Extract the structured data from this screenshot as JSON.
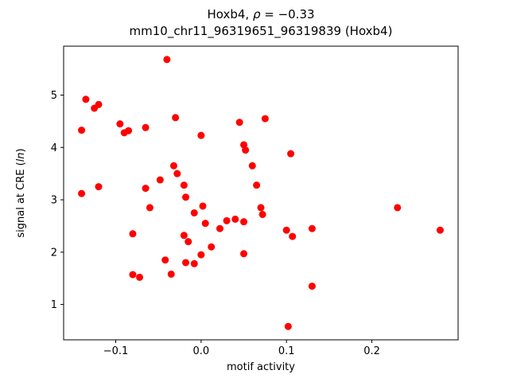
{
  "chart_data": {
    "type": "scatter",
    "title_line1_prefix": "Hoxb4, ",
    "title_line1_rho": "ρ",
    "title_line1_suffix": " = −0.33",
    "title_line2": "mm10_chr11_96319651_96319839 (Hoxb4)",
    "xlabel": "motif activity",
    "ylabel_prefix": "signal at CRE (",
    "ylabel_italic": "ln",
    "ylabel_suffix": ")",
    "xlim": [
      -0.161,
      0.301
    ],
    "ylim": [
      0.325,
      5.935
    ],
    "xtick_values": [
      -0.1,
      0.0,
      0.1,
      0.2
    ],
    "xtick_labels": [
      "−0.1",
      "0.0",
      "0.1",
      "0.2"
    ],
    "ytick_values": [
      1,
      2,
      3,
      4,
      5
    ],
    "ytick_labels": [
      "1",
      "2",
      "3",
      "4",
      "5"
    ],
    "marker_color": "#ff0000",
    "axis_color": "#000000",
    "legend": "none",
    "grid": false,
    "points": [
      [
        -0.14,
        3.12
      ],
      [
        -0.135,
        4.92
      ],
      [
        -0.14,
        4.33
      ],
      [
        -0.125,
        4.75
      ],
      [
        -0.12,
        4.82
      ],
      [
        -0.12,
        3.25
      ],
      [
        -0.095,
        4.45
      ],
      [
        -0.09,
        4.28
      ],
      [
        -0.085,
        4.32
      ],
      [
        -0.08,
        2.35
      ],
      [
        -0.08,
        1.57
      ],
      [
        -0.072,
        1.52
      ],
      [
        -0.065,
        4.38
      ],
      [
        -0.065,
        3.22
      ],
      [
        -0.06,
        2.85
      ],
      [
        -0.048,
        3.38
      ],
      [
        -0.04,
        5.68
      ],
      [
        -0.042,
        1.85
      ],
      [
        -0.035,
        1.58
      ],
      [
        -0.03,
        4.57
      ],
      [
        -0.032,
        3.65
      ],
      [
        -0.028,
        3.5
      ],
      [
        -0.02,
        3.28
      ],
      [
        -0.018,
        3.05
      ],
      [
        -0.02,
        2.32
      ],
      [
        -0.015,
        2.2
      ],
      [
        -0.018,
        1.8
      ],
      [
        -0.008,
        2.75
      ],
      [
        -0.008,
        1.78
      ],
      [
        0.0,
        4.23
      ],
      [
        0.002,
        2.88
      ],
      [
        0.0,
        1.95
      ],
      [
        0.005,
        2.55
      ],
      [
        0.012,
        2.1
      ],
      [
        0.022,
        2.45
      ],
      [
        0.03,
        2.6
      ],
      [
        0.04,
        2.63
      ],
      [
        0.045,
        4.48
      ],
      [
        0.05,
        4.05
      ],
      [
        0.052,
        3.95
      ],
      [
        0.05,
        2.58
      ],
      [
        0.05,
        1.97
      ],
      [
        0.06,
        3.65
      ],
      [
        0.065,
        3.28
      ],
      [
        0.07,
        2.85
      ],
      [
        0.072,
        2.72
      ],
      [
        0.075,
        4.55
      ],
      [
        0.1,
        2.42
      ],
      [
        0.102,
        0.58
      ],
      [
        0.105,
        3.88
      ],
      [
        0.107,
        2.3
      ],
      [
        0.13,
        2.45
      ],
      [
        0.13,
        1.35
      ],
      [
        0.23,
        2.85
      ],
      [
        0.28,
        2.42
      ]
    ]
  }
}
